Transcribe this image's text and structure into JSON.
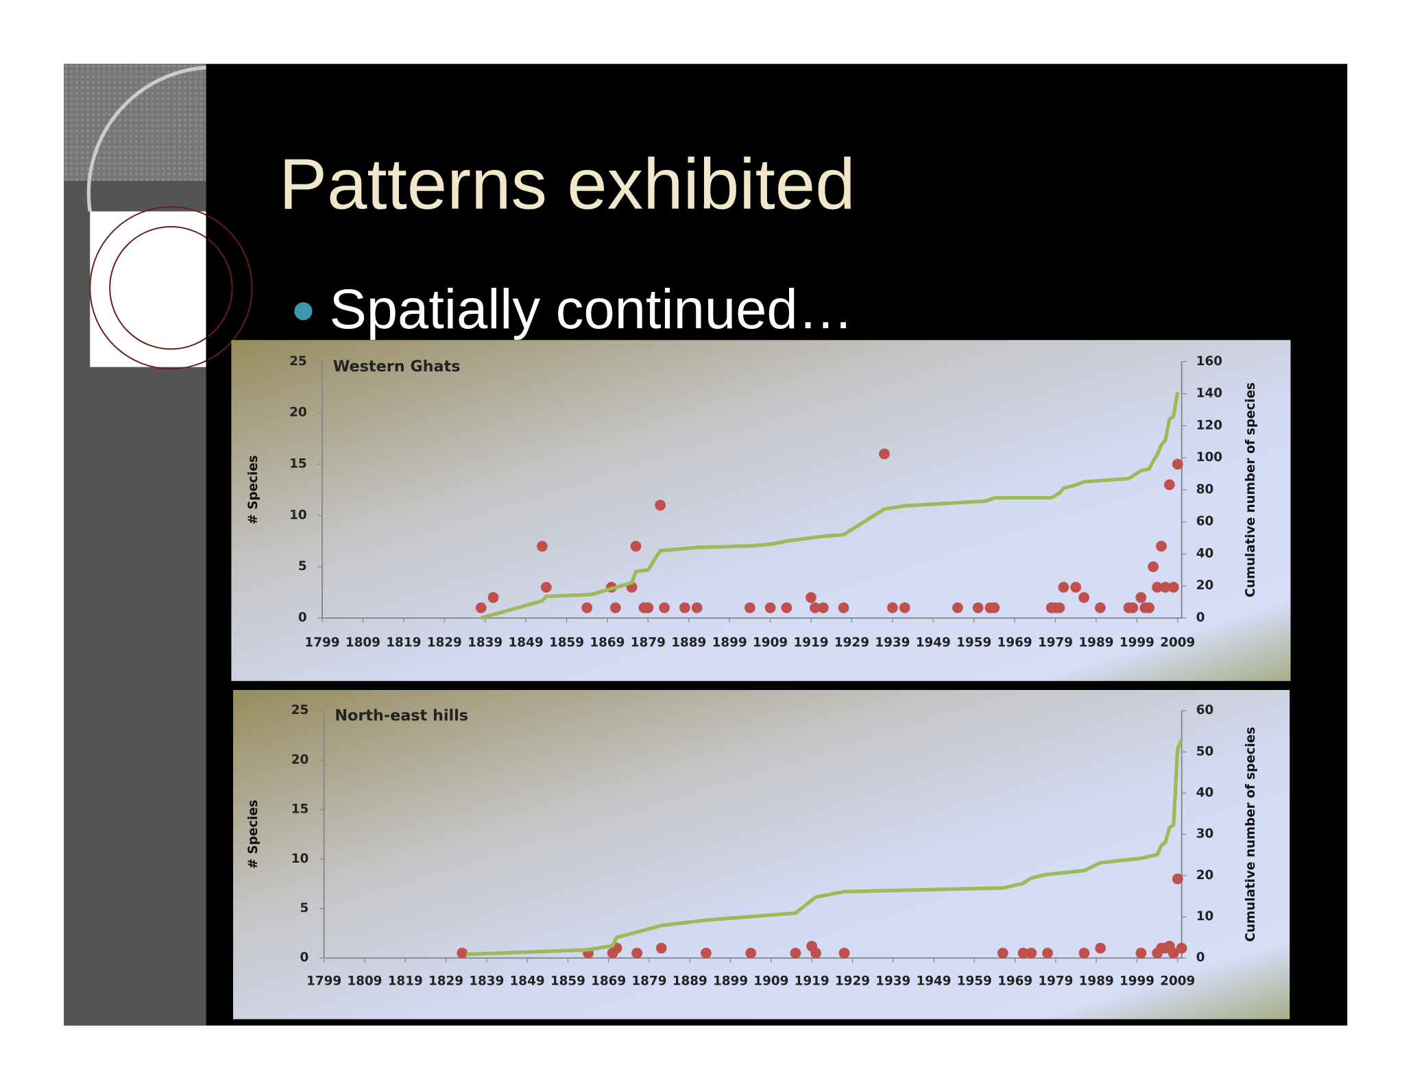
{
  "title": "Patterns exhibited",
  "bullet": "Spatially continued…",
  "chart_data": [
    {
      "type": "scatter",
      "title": "Western Ghats",
      "ylabel": "# Species",
      "y2label": "Cumulative number of species",
      "xlim": [
        1799,
        2010
      ],
      "xticks": [
        1799,
        1809,
        1819,
        1829,
        1839,
        1849,
        1859,
        1869,
        1879,
        1889,
        1899,
        1909,
        1919,
        1929,
        1939,
        1949,
        1959,
        1969,
        1979,
        1989,
        1999,
        2009
      ],
      "ylim": [
        0,
        25
      ],
      "yticks": [
        0,
        5,
        10,
        15,
        20,
        25
      ],
      "y2lim": [
        0,
        160
      ],
      "y2ticks": [
        0,
        20,
        40,
        60,
        80,
        100,
        120,
        140,
        160
      ],
      "series": [
        {
          "type": "scatter",
          "color": "#c0504d",
          "x": [
            1838,
            1841,
            1853,
            1854,
            1864,
            1870,
            1871,
            1875,
            1876,
            1878,
            1879,
            1882,
            1883,
            1888,
            1891,
            1904,
            1909,
            1913,
            1919,
            1920,
            1922,
            1927,
            1937,
            1939,
            1942,
            1955,
            1960,
            1963,
            1964,
            1978,
            1979,
            1980,
            1981,
            1984,
            1986,
            1990,
            1997,
            1998,
            2000,
            2001,
            2002,
            2003,
            2004,
            2005,
            2006,
            2007,
            2008,
            2009
          ],
          "values": [
            1,
            2,
            7,
            3,
            1,
            3,
            1,
            3,
            7,
            1,
            1,
            11,
            1,
            1,
            1,
            1,
            1,
            1,
            2,
            1,
            1,
            1,
            16,
            1,
            1,
            1,
            1,
            1,
            1,
            1,
            1,
            1,
            3,
            3,
            2,
            1,
            1,
            1,
            2,
            1,
            1,
            5,
            3,
            7,
            3,
            13,
            3,
            15
          ]
        },
        {
          "type": "line",
          "axis": "y2",
          "color": "#9bbb59",
          "x": [
            1838,
            1853,
            1854,
            1865,
            1875,
            1876,
            1879,
            1882,
            1891,
            1904,
            1909,
            1913,
            1919,
            1922,
            1927,
            1937,
            1942,
            1962,
            1964,
            1978,
            1980,
            1981,
            1984,
            1986,
            1997,
            2000,
            2002,
            2003,
            2004,
            2005,
            2006,
            2007,
            2008,
            2009
          ],
          "values": [
            0,
            10.7,
            13.5,
            14.6,
            22,
            29,
            30,
            42,
            44,
            45,
            46,
            48,
            50,
            51,
            52,
            68,
            70,
            73,
            75,
            75,
            78,
            81,
            83,
            85,
            87,
            92,
            93,
            98,
            102,
            108,
            111,
            124,
            126,
            141
          ]
        }
      ]
    },
    {
      "type": "scatter",
      "title": "North-east hills",
      "ylabel": "# Species",
      "y2label": "Cumulative number of species",
      "xlim": [
        1799,
        2010
      ],
      "xticks": [
        1799,
        1809,
        1819,
        1829,
        1839,
        1849,
        1859,
        1869,
        1879,
        1889,
        1899,
        1909,
        1919,
        1929,
        1939,
        1949,
        1959,
        1969,
        1979,
        1989,
        1999,
        2009
      ],
      "ylim": [
        0,
        25
      ],
      "yticks": [
        0,
        5,
        10,
        15,
        20,
        25
      ],
      "y2lim": [
        0,
        60
      ],
      "y2ticks": [
        0,
        10,
        20,
        30,
        40,
        50,
        60
      ],
      "series": [
        {
          "type": "scatter",
          "color": "#c0504d",
          "x": [
            1833,
            1864,
            1870,
            1871,
            1876,
            1882,
            1893,
            1904,
            1915,
            1919,
            1920,
            1927,
            1966,
            1971,
            1973,
            1977,
            1986,
            1990,
            2000,
            2004,
            2005,
            2006,
            2007,
            2008,
            2009,
            2010
          ],
          "values": [
            0.5,
            0.5,
            0.5,
            1,
            0.5,
            1,
            0.5,
            0.5,
            0.5,
            1.2,
            0.5,
            0.5,
            0.5,
            0.5,
            0.5,
            0.5,
            0.5,
            1,
            0.5,
            0.5,
            1,
            1,
            1.2,
            0.5,
            8,
            1
          ]
        },
        {
          "type": "line",
          "axis": "y2",
          "color": "#9bbb59",
          "x": [
            1834,
            1864,
            1870,
            1871,
            1876,
            1882,
            1893,
            1915,
            1920,
            1927,
            1966,
            1971,
            1973,
            1977,
            1986,
            1990,
            2000,
            2004,
            2005,
            2006,
            2007,
            2008,
            2009,
            2010
          ],
          "values": [
            0.9,
            2,
            3,
            5,
            6.3,
            7.9,
            9.2,
            10.9,
            14.8,
            16.1,
            17,
            18.1,
            19.4,
            20.3,
            21.2,
            23.1,
            24.2,
            25.1,
            27.3,
            28.1,
            31.6,
            32.3,
            50.8,
            53
          ]
        }
      ]
    }
  ]
}
